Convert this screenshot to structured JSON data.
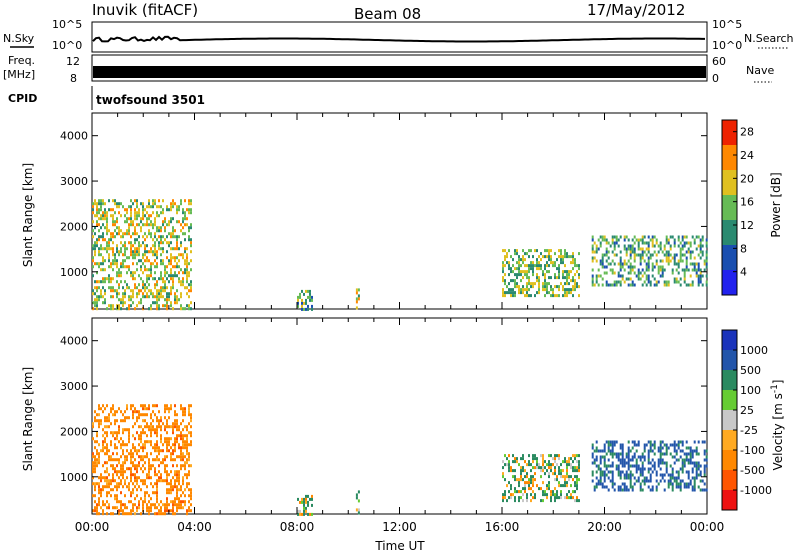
{
  "header": {
    "station": "Inuvik (fitACF)",
    "beam": "Beam 08",
    "date": "17/May/2012"
  },
  "side_labels": {
    "nsky": "N.Sky",
    "freq": "Freq.",
    "freq_unit": "[MHz]",
    "cpid": "CPID",
    "nsearch": "N.Search",
    "nave": "Nave",
    "cpid_value": "twofsound 3501"
  },
  "noise_axis": {
    "top": "10^5",
    "bottom": "10^0"
  },
  "freq_axis": {
    "left_ticks": [
      "12",
      "8"
    ],
    "right_ticks": [
      "60",
      "0"
    ]
  },
  "chart_data": [
    {
      "type": "heatmap",
      "title": "Power",
      "colorbar_label": "Power [dB]",
      "xlabel": "",
      "ylabel": "Slant Range [km]",
      "xlim": [
        0,
        24
      ],
      "ylim": [
        180,
        4500
      ],
      "yticks": [
        1000,
        2000,
        3000,
        4000
      ],
      "colorbar_ticks": [
        4,
        8,
        12,
        16,
        20,
        24,
        28
      ],
      "colorbar_range": [
        0,
        30
      ],
      "colors": [
        "#2222ee",
        "#1a4fb0",
        "#2a8a70",
        "#66bb55",
        "#e0c020",
        "#ff8800",
        "#ee2200"
      ],
      "regions": [
        {
          "t": [
            0.0,
            3.9
          ],
          "r": [
            200,
            2600
          ],
          "level": 16
        },
        {
          "t": [
            8.0,
            8.6
          ],
          "r": [
            200,
            600
          ],
          "level": 12
        },
        {
          "t": [
            10.3,
            10.4
          ],
          "r": [
            200,
            700
          ],
          "level": 16
        },
        {
          "t": [
            16.0,
            19.0
          ],
          "r": [
            500,
            1500
          ],
          "level": 14
        },
        {
          "t": [
            19.5,
            24.0
          ],
          "r": [
            700,
            1800
          ],
          "level": 12
        }
      ]
    },
    {
      "type": "heatmap",
      "title": "Velocity",
      "colorbar_label": "Velocity [m s^-1]",
      "xlabel": "Time UT",
      "ylabel": "Slant Range [km]",
      "xlim": [
        0,
        24
      ],
      "ylim": [
        180,
        4500
      ],
      "yticks": [
        1000,
        2000,
        3000,
        4000
      ],
      "xticks": [
        "00:00",
        "04:00",
        "08:00",
        "12:00",
        "16:00",
        "20:00",
        "00:00"
      ],
      "colorbar_ticks": [
        "1000",
        "500",
        "100",
        "25",
        "-25",
        "-100",
        "-500",
        "-1000"
      ],
      "colors": [
        "#ee1111",
        "#ff5500",
        "#ff8800",
        "#ffaa22",
        "#c8c8c8",
        "#66cc33",
        "#2a8a60",
        "#2255aa",
        "#1a33bb"
      ],
      "regions": [
        {
          "t": [
            0.0,
            3.9
          ],
          "r": [
            200,
            2600
          ],
          "level": -300
        },
        {
          "t": [
            8.0,
            8.6
          ],
          "r": [
            200,
            600
          ],
          "level": 60
        },
        {
          "t": [
            10.3,
            10.4
          ],
          "r": [
            200,
            700
          ],
          "level": 200
        },
        {
          "t": [
            16.0,
            19.0
          ],
          "r": [
            500,
            1500
          ],
          "level": 80
        },
        {
          "t": [
            19.5,
            24.0
          ],
          "r": [
            700,
            1800
          ],
          "level": 600
        }
      ]
    }
  ]
}
